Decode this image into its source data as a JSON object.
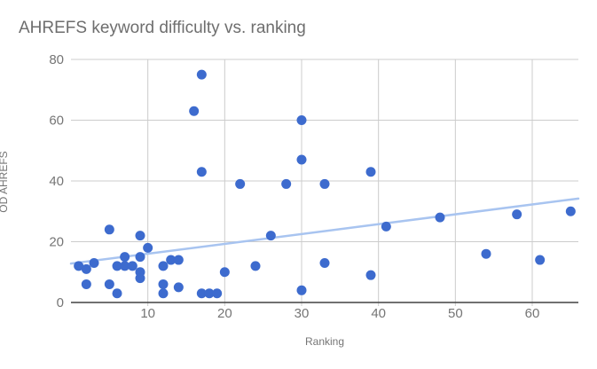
{
  "colors": {
    "point": "#3d6bce",
    "trendline": "#a8c4f0",
    "gridline": "#cccccc",
    "axis_line": "#424242",
    "tick_label": "#757575",
    "axis_title": "#757575",
    "title_text": "#6e6e6e",
    "background": "#ffffff"
  },
  "chart_data": {
    "type": "scatter",
    "title": "AHREFS keyword difficulty vs. ranking",
    "xlabel": "Ranking",
    "ylabel": "OD AHREFS",
    "xlim": [
      0,
      66
    ],
    "ylim": [
      0,
      80
    ],
    "x_ticks": [
      10,
      20,
      30,
      40,
      50,
      60
    ],
    "y_ticks": [
      0,
      20,
      40,
      60,
      80
    ],
    "grid": true,
    "legend_position": "none",
    "series": [
      {
        "name": "OD AHREFS",
        "points": [
          [
            1,
            12
          ],
          [
            2,
            11
          ],
          [
            2,
            6
          ],
          [
            3,
            13
          ],
          [
            5,
            24
          ],
          [
            5,
            6
          ],
          [
            6,
            12
          ],
          [
            6,
            3
          ],
          [
            7,
            12
          ],
          [
            7,
            15
          ],
          [
            8,
            12
          ],
          [
            9,
            22
          ],
          [
            9,
            15
          ],
          [
            9,
            10
          ],
          [
            9,
            8
          ],
          [
            10,
            18
          ],
          [
            12,
            12
          ],
          [
            12,
            6
          ],
          [
            12,
            3
          ],
          [
            13,
            14
          ],
          [
            14,
            14
          ],
          [
            14,
            5
          ],
          [
            16,
            63
          ],
          [
            17,
            75
          ],
          [
            17,
            43
          ],
          [
            17,
            3
          ],
          [
            18,
            3
          ],
          [
            19,
            3
          ],
          [
            20,
            10
          ],
          [
            22,
            39
          ],
          [
            24,
            12
          ],
          [
            26,
            22
          ],
          [
            28,
            39
          ],
          [
            30,
            60
          ],
          [
            30,
            47
          ],
          [
            30,
            4
          ],
          [
            33,
            39
          ],
          [
            33,
            13
          ],
          [
            39,
            43
          ],
          [
            39,
            9
          ],
          [
            41,
            25
          ],
          [
            48,
            28
          ],
          [
            54,
            16
          ],
          [
            58,
            29
          ],
          [
            61,
            14
          ],
          [
            65,
            30
          ]
        ]
      }
    ],
    "trendline": {
      "x_start": 0,
      "y_start": 12.8,
      "x_end": 66,
      "y_end": 34.2
    }
  }
}
